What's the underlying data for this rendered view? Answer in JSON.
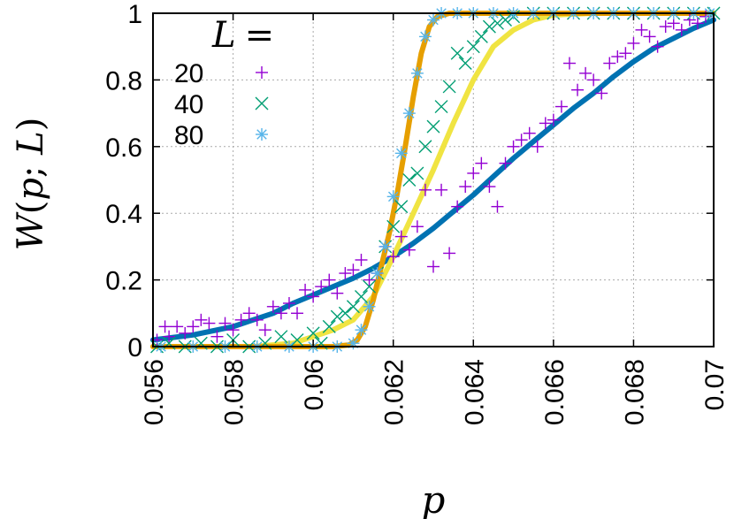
{
  "chart_data": {
    "type": "scatter",
    "xlabel": "p",
    "ylabel": {
      "func": "W",
      "open": "(",
      "var1": "p",
      "sep": "; ",
      "var2": "L",
      "close": ")"
    },
    "legend_title": {
      "var": "L",
      "op": "="
    },
    "xlim": [
      0.056,
      0.07
    ],
    "ylim": [
      0,
      1
    ],
    "x_ticks": [
      "0.056",
      "0.058",
      "0.06",
      "0.062",
      "0.064",
      "0.066",
      "0.068",
      "0.07"
    ],
    "y_ticks": [
      "0",
      "0.2",
      "0.4",
      "0.6",
      "0.8",
      "1"
    ],
    "grid": true,
    "legend_position": "top-left",
    "series": [
      {
        "name": "20",
        "marker": "plus",
        "color": "#9400d3",
        "points": [
          [
            0.0561,
            0.02
          ],
          [
            0.0563,
            0.06
          ],
          [
            0.0564,
            0.03
          ],
          [
            0.0566,
            0.06
          ],
          [
            0.0568,
            0.04
          ],
          [
            0.057,
            0.06
          ],
          [
            0.0572,
            0.08
          ],
          [
            0.0574,
            0.07
          ],
          [
            0.0576,
            0.03
          ],
          [
            0.0578,
            0.07
          ],
          [
            0.058,
            0.05
          ],
          [
            0.0582,
            0.08
          ],
          [
            0.0584,
            0.1
          ],
          [
            0.0586,
            0.08
          ],
          [
            0.0588,
            0.05
          ],
          [
            0.059,
            0.12
          ],
          [
            0.0592,
            0.1
          ],
          [
            0.0594,
            0.13
          ],
          [
            0.0596,
            0.1
          ],
          [
            0.0598,
            0.17
          ],
          [
            0.06,
            0.15
          ],
          [
            0.0602,
            0.18
          ],
          [
            0.0604,
            0.2
          ],
          [
            0.0606,
            0.16
          ],
          [
            0.0608,
            0.22
          ],
          [
            0.061,
            0.23
          ],
          [
            0.0612,
            0.26
          ],
          [
            0.0614,
            0.2
          ],
          [
            0.0616,
            0.22
          ],
          [
            0.0618,
            0.3
          ],
          [
            0.062,
            0.27
          ],
          [
            0.0622,
            0.33
          ],
          [
            0.0624,
            0.29
          ],
          [
            0.0626,
            0.36
          ],
          [
            0.0628,
            0.47
          ],
          [
            0.063,
            0.24
          ],
          [
            0.0632,
            0.47
          ],
          [
            0.0634,
            0.28
          ],
          [
            0.0636,
            0.42
          ],
          [
            0.0638,
            0.48
          ],
          [
            0.064,
            0.52
          ],
          [
            0.0642,
            0.55
          ],
          [
            0.0644,
            0.48
          ],
          [
            0.0646,
            0.42
          ],
          [
            0.0648,
            0.55
          ],
          [
            0.065,
            0.6
          ],
          [
            0.0652,
            0.62
          ],
          [
            0.0654,
            0.64
          ],
          [
            0.0656,
            0.6
          ],
          [
            0.0658,
            0.67
          ],
          [
            0.066,
            0.68
          ],
          [
            0.0662,
            0.72
          ],
          [
            0.0664,
            0.85
          ],
          [
            0.0666,
            0.77
          ],
          [
            0.0668,
            0.82
          ],
          [
            0.067,
            0.8
          ],
          [
            0.0672,
            0.76
          ],
          [
            0.0674,
            0.85
          ],
          [
            0.0676,
            0.87
          ],
          [
            0.0678,
            0.88
          ],
          [
            0.068,
            0.91
          ],
          [
            0.0682,
            0.95
          ],
          [
            0.0684,
            0.93
          ],
          [
            0.0686,
            0.9
          ],
          [
            0.0688,
            0.96
          ],
          [
            0.069,
            0.97
          ],
          [
            0.0692,
            0.95
          ],
          [
            0.0694,
            0.98
          ],
          [
            0.0696,
            0.97
          ],
          [
            0.0698,
            0.99
          ]
        ]
      },
      {
        "name": "40",
        "marker": "cross",
        "color": "#009e73",
        "points": [
          [
            0.0561,
            0.0
          ],
          [
            0.0564,
            0.01
          ],
          [
            0.0568,
            0.0
          ],
          [
            0.0572,
            0.01
          ],
          [
            0.0576,
            0.0
          ],
          [
            0.058,
            0.02
          ],
          [
            0.0584,
            0.0
          ],
          [
            0.0588,
            0.01
          ],
          [
            0.0592,
            0.03
          ],
          [
            0.0596,
            0.02
          ],
          [
            0.06,
            0.04
          ],
          [
            0.0602,
            0.01
          ],
          [
            0.0604,
            0.06
          ],
          [
            0.0606,
            0.09
          ],
          [
            0.0608,
            0.1
          ],
          [
            0.061,
            0.12
          ],
          [
            0.0612,
            0.15
          ],
          [
            0.0614,
            0.18
          ],
          [
            0.0616,
            0.22
          ],
          [
            0.0618,
            0.3
          ],
          [
            0.062,
            0.36
          ],
          [
            0.0622,
            0.42
          ],
          [
            0.0624,
            0.5
          ],
          [
            0.0626,
            0.52
          ],
          [
            0.0628,
            0.6
          ],
          [
            0.063,
            0.66
          ],
          [
            0.0632,
            0.72
          ],
          [
            0.0634,
            0.78
          ],
          [
            0.0636,
            0.88
          ],
          [
            0.0638,
            0.85
          ],
          [
            0.064,
            0.9
          ],
          [
            0.0642,
            0.93
          ],
          [
            0.0644,
            0.96
          ],
          [
            0.0646,
            0.97
          ],
          [
            0.0648,
            0.98
          ],
          [
            0.065,
            0.99
          ],
          [
            0.0655,
            1.0
          ],
          [
            0.066,
            1.0
          ],
          [
            0.0665,
            1.0
          ],
          [
            0.067,
            1.0
          ],
          [
            0.0675,
            1.0
          ],
          [
            0.068,
            1.0
          ],
          [
            0.0685,
            1.0
          ],
          [
            0.069,
            1.0
          ],
          [
            0.0695,
            1.0
          ],
          [
            0.07,
            1.0
          ]
        ]
      },
      {
        "name": "80",
        "marker": "star",
        "color": "#56b4e9",
        "points": [
          [
            0.0562,
            0.0
          ],
          [
            0.057,
            0.0
          ],
          [
            0.0578,
            0.0
          ],
          [
            0.0586,
            0.0
          ],
          [
            0.0594,
            0.0
          ],
          [
            0.06,
            0.0
          ],
          [
            0.0606,
            0.0
          ],
          [
            0.061,
            0.01
          ],
          [
            0.0612,
            0.05
          ],
          [
            0.0614,
            0.12
          ],
          [
            0.0616,
            0.22
          ],
          [
            0.0618,
            0.3
          ],
          [
            0.062,
            0.45
          ],
          [
            0.0622,
            0.58
          ],
          [
            0.0624,
            0.7
          ],
          [
            0.0626,
            0.82
          ],
          [
            0.0628,
            0.93
          ],
          [
            0.063,
            0.98
          ],
          [
            0.0632,
            1.0
          ],
          [
            0.0636,
            1.0
          ],
          [
            0.064,
            1.0
          ],
          [
            0.0645,
            1.0
          ],
          [
            0.065,
            1.0
          ],
          [
            0.0655,
            1.0
          ],
          [
            0.066,
            1.0
          ],
          [
            0.0665,
            1.0
          ],
          [
            0.067,
            1.0
          ],
          [
            0.0675,
            1.0
          ],
          [
            0.068,
            1.0
          ],
          [
            0.0685,
            1.0
          ],
          [
            0.069,
            1.0
          ],
          [
            0.0695,
            1.0
          ],
          [
            0.0699,
            1.0
          ]
        ]
      }
    ],
    "curves": [
      {
        "color": "#0072b2",
        "points": [
          [
            0.056,
            0.02
          ],
          [
            0.057,
            0.035
          ],
          [
            0.058,
            0.06
          ],
          [
            0.0585,
            0.08
          ],
          [
            0.059,
            0.1
          ],
          [
            0.0595,
            0.13
          ],
          [
            0.06,
            0.155
          ],
          [
            0.0605,
            0.18
          ],
          [
            0.061,
            0.205
          ],
          [
            0.0615,
            0.235
          ],
          [
            0.062,
            0.27
          ],
          [
            0.0625,
            0.31
          ],
          [
            0.063,
            0.355
          ],
          [
            0.0635,
            0.405
          ],
          [
            0.064,
            0.455
          ],
          [
            0.0645,
            0.51
          ],
          [
            0.065,
            0.565
          ],
          [
            0.0655,
            0.615
          ],
          [
            0.066,
            0.665
          ],
          [
            0.0665,
            0.715
          ],
          [
            0.067,
            0.76
          ],
          [
            0.0675,
            0.81
          ],
          [
            0.068,
            0.855
          ],
          [
            0.0685,
            0.895
          ],
          [
            0.069,
            0.925
          ],
          [
            0.0695,
            0.955
          ],
          [
            0.07,
            0.98
          ]
        ]
      },
      {
        "color": "#f0e442",
        "points": [
          [
            0.056,
            0.0
          ],
          [
            0.0585,
            0.0
          ],
          [
            0.0595,
            0.01
          ],
          [
            0.06,
            0.03
          ],
          [
            0.0605,
            0.05
          ],
          [
            0.061,
            0.08
          ],
          [
            0.0615,
            0.15
          ],
          [
            0.062,
            0.27
          ],
          [
            0.0625,
            0.4
          ],
          [
            0.063,
            0.53
          ],
          [
            0.0635,
            0.67
          ],
          [
            0.064,
            0.8
          ],
          [
            0.0645,
            0.9
          ],
          [
            0.065,
            0.95
          ],
          [
            0.0655,
            0.98
          ],
          [
            0.066,
            0.995
          ],
          [
            0.067,
            1.0
          ],
          [
            0.07,
            1.0
          ]
        ]
      },
      {
        "color": "#e69f00",
        "points": [
          [
            0.056,
            0.0
          ],
          [
            0.0605,
            0.0
          ],
          [
            0.0609,
            0.005
          ],
          [
            0.0611,
            0.02
          ],
          [
            0.0613,
            0.06
          ],
          [
            0.0615,
            0.14
          ],
          [
            0.0617,
            0.24
          ],
          [
            0.0619,
            0.34
          ],
          [
            0.0621,
            0.46
          ],
          [
            0.0623,
            0.6
          ],
          [
            0.0625,
            0.75
          ],
          [
            0.0627,
            0.88
          ],
          [
            0.0629,
            0.96
          ],
          [
            0.0631,
            0.99
          ],
          [
            0.0634,
            1.0
          ],
          [
            0.07,
            1.0
          ]
        ]
      }
    ]
  }
}
